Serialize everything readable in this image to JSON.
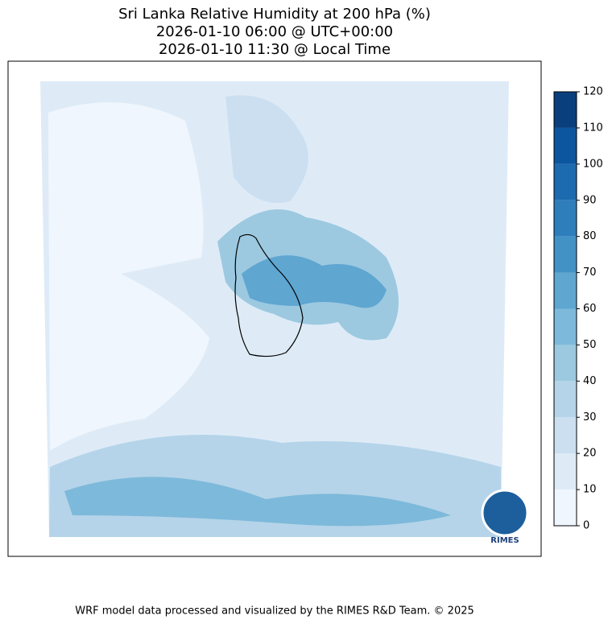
{
  "title": [
    "Sri Lanka Relative Humidity at 200 hPa (%)",
    "2026-01-10 06:00 @ UTC+00:00",
    "2026-01-10 11:30 @ Local Time"
  ],
  "colorbar": {
    "levels": [
      0,
      10,
      20,
      30,
      40,
      50,
      60,
      70,
      80,
      90,
      100,
      110,
      120
    ],
    "colors": [
      "#eff6fd",
      "#deebf7",
      "#cbdff1",
      "#b5d4e9",
      "#9cc9e0",
      "#7db9da",
      "#5fa6d1",
      "#4292c6",
      "#2f7ebc",
      "#1c6bb0",
      "#0c56a0",
      "#0a3f7d"
    ]
  },
  "logo_text": "RIMES",
  "footer": "WRF model data processed and visualized by the RIMES R&D Team. © 2025"
}
